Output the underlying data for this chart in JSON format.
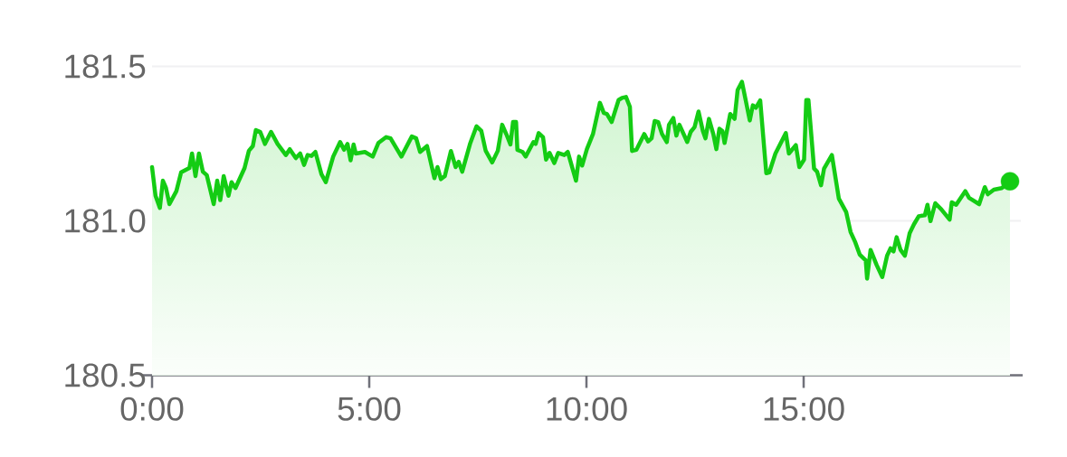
{
  "chart_data": {
    "type": "area",
    "xlim": [
      0,
      20
    ],
    "ylim": [
      180.5,
      181.5
    ],
    "xticks": [
      {
        "value": 0,
        "label": "0:00"
      },
      {
        "value": 5,
        "label": "5:00"
      },
      {
        "value": 10,
        "label": "10:00"
      },
      {
        "value": 15,
        "label": "15:00"
      }
    ],
    "yticks": [
      180.5,
      {
        "value": 181,
        "label": "181.0"
      },
      181.5
    ],
    "grid": "y",
    "series": [
      {
        "color": "#14cc14",
        "x": [
          0,
          0.08,
          0.18,
          0.25,
          0.32,
          0.4,
          0.56,
          0.67,
          0.86,
          0.92,
          1.0,
          1.08,
          1.17,
          1.26,
          1.42,
          1.5,
          1.57,
          1.65,
          1.76,
          1.83,
          1.92,
          2.13,
          2.23,
          2.32,
          2.39,
          2.49,
          2.6,
          2.74,
          2.89,
          3.08,
          3.17,
          3.31,
          3.41,
          3.5,
          3.58,
          3.67,
          3.76,
          3.9,
          4.0,
          4.17,
          4.33,
          4.42,
          4.5,
          4.57,
          4.64,
          4.69,
          4.9,
          5.08,
          5.21,
          5.39,
          5.49,
          5.74,
          5.98,
          6.08,
          6.17,
          6.33,
          6.5,
          6.57,
          6.65,
          6.74,
          6.88,
          6.99,
          7.06,
          7.14,
          7.32,
          7.47,
          7.58,
          7.68,
          7.83,
          7.96,
          8.06,
          8.17,
          8.25,
          8.31,
          8.38,
          8.41,
          8.53,
          8.6,
          8.78,
          8.83,
          8.9,
          9.0,
          9.07,
          9.15,
          9.26,
          9.35,
          9.49,
          9.57,
          9.76,
          9.83,
          9.9,
          10.01,
          10.15,
          10.31,
          10.4,
          10.47,
          10.58,
          10.74,
          10.82,
          10.91,
          11.0,
          11.05,
          11.15,
          11.33,
          11.42,
          11.5,
          11.57,
          11.65,
          11.74,
          11.85,
          11.9,
          12.0,
          12.07,
          12.14,
          12.32,
          12.4,
          12.49,
          12.58,
          12.68,
          12.74,
          12.82,
          12.92,
          12.99,
          13.06,
          13.13,
          13.18,
          13.31,
          13.41,
          13.48,
          13.58,
          13.76,
          13.83,
          13.9,
          14.0,
          14.14,
          14.21,
          14.35,
          14.59,
          14.66,
          14.82,
          14.9,
          15.01,
          15.06,
          15.11,
          15.24,
          15.31,
          15.4,
          15.47,
          15.65,
          15.81,
          15.98,
          16.08,
          16.19,
          16.29,
          16.43,
          16.46,
          16.54,
          16.68,
          16.81,
          16.92,
          17.0,
          17.07,
          17.14,
          17.23,
          17.33,
          17.44,
          17.54,
          17.65,
          17.79,
          17.85,
          17.92,
          18.03,
          18.17,
          18.36,
          18.41,
          18.51,
          18.72,
          18.81,
          19.04,
          19.17,
          19.24,
          19.38,
          19.56,
          19.75
        ],
        "values": [
          181.174,
          181.081,
          181.042,
          181.13,
          181.107,
          181.054,
          181.096,
          181.157,
          181.171,
          181.218,
          181.145,
          181.218,
          181.159,
          181.148,
          181.054,
          181.13,
          181.067,
          181.145,
          181.081,
          181.125,
          181.106,
          181.171,
          181.227,
          181.242,
          181.294,
          181.288,
          181.249,
          181.288,
          181.249,
          181.213,
          181.232,
          181.203,
          181.218,
          181.181,
          181.213,
          181.21,
          181.223,
          181.151,
          181.125,
          181.208,
          181.255,
          181.23,
          181.249,
          181.196,
          181.247,
          181.218,
          181.223,
          181.208,
          181.252,
          181.271,
          181.267,
          181.208,
          181.273,
          181.267,
          181.223,
          181.242,
          181.138,
          181.174,
          181.135,
          181.145,
          181.226,
          181.174,
          181.191,
          181.159,
          181.249,
          181.306,
          181.291,
          181.227,
          181.189,
          181.227,
          181.311,
          181.276,
          181.247,
          181.32,
          181.32,
          181.23,
          181.223,
          181.208,
          181.255,
          181.249,
          181.284,
          181.271,
          181.198,
          181.22,
          181.187,
          181.22,
          181.213,
          181.223,
          181.13,
          181.208,
          181.179,
          181.232,
          181.281,
          181.382,
          181.349,
          181.346,
          181.32,
          181.391,
          181.398,
          181.401,
          181.369,
          181.226,
          181.23,
          181.281,
          181.257,
          181.267,
          181.323,
          181.32,
          181.281,
          181.255,
          181.311,
          181.333,
          181.276,
          181.311,
          181.255,
          181.288,
          181.304,
          181.354,
          181.291,
          181.267,
          181.33,
          181.281,
          181.232,
          181.298,
          181.291,
          181.252,
          181.346,
          181.33,
          181.423,
          181.45,
          181.325,
          181.374,
          181.366,
          181.39,
          181.154,
          181.157,
          181.218,
          181.284,
          181.218,
          181.245,
          181.174,
          181.198,
          181.391,
          181.391,
          181.169,
          181.159,
          181.115,
          181.169,
          181.213,
          181.072,
          181.028,
          180.964,
          180.93,
          180.891,
          180.872,
          180.813,
          180.906,
          180.857,
          180.818,
          180.887,
          180.911,
          180.901,
          180.947,
          180.906,
          180.887,
          180.96,
          180.989,
          181.015,
          181.018,
          181.052,
          180.999,
          181.057,
          181.037,
          181.004,
          181.06,
          181.052,
          181.096,
          181.074,
          181.054,
          181.109,
          181.086,
          181.101,
          181.106,
          181.128
        ]
      },
      {
        "type": "scatter",
        "marker": "circle",
        "color": "#14cc14",
        "x": [
          19.75
        ],
        "values": [
          181.128
        ]
      }
    ]
  }
}
